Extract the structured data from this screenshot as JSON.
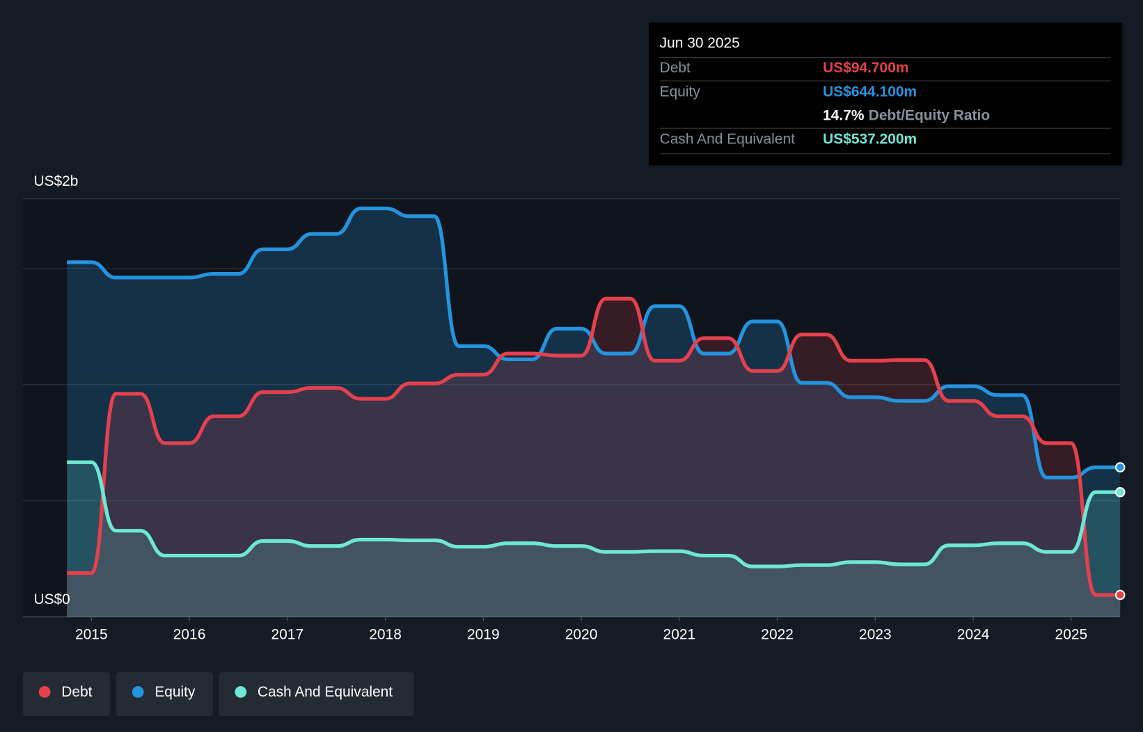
{
  "chart_data": {
    "type": "line",
    "x": [
      2014.75,
      2015.0,
      2015.25,
      2015.5,
      2015.75,
      2016.0,
      2016.25,
      2016.5,
      2016.75,
      2017.0,
      2017.25,
      2017.5,
      2017.75,
      2018.0,
      2018.25,
      2018.5,
      2018.75,
      2019.0,
      2019.25,
      2019.5,
      2019.75,
      2020.0,
      2020.25,
      2020.5,
      2020.75,
      2021.0,
      2021.25,
      2021.5,
      2021.75,
      2022.0,
      2022.25,
      2022.5,
      2022.75,
      2023.0,
      2023.25,
      2023.5,
      2023.75,
      2024.0,
      2024.25,
      2024.5,
      2024.75,
      2025.0,
      2025.25,
      2025.5
    ],
    "series": [
      {
        "name": "Debt",
        "color": "#e5404e",
        "values": [
          189,
          189,
          961,
          961,
          748,
          748,
          864,
          864,
          968,
          968,
          986,
          986,
          939,
          939,
          1005,
          1005,
          1043,
          1043,
          1134,
          1134,
          1125,
          1125,
          1370,
          1370,
          1103,
          1103,
          1200,
          1200,
          1059,
          1059,
          1216,
          1216,
          1103,
          1103,
          1106,
          1106,
          930,
          930,
          864,
          864,
          748,
          748,
          94.7,
          94.7
        ]
      },
      {
        "name": "Equity",
        "color": "#2394df",
        "values": [
          1527,
          1527,
          1461,
          1461,
          1461,
          1461,
          1477,
          1477,
          1583,
          1583,
          1649,
          1649,
          1759,
          1759,
          1725,
          1725,
          1166,
          1166,
          1109,
          1109,
          1241,
          1241,
          1134,
          1134,
          1338,
          1338,
          1134,
          1134,
          1272,
          1272,
          1008,
          1008,
          946,
          946,
          930,
          930,
          993,
          993,
          955,
          955,
          600,
          600,
          644.1,
          644.1
        ]
      },
      {
        "name": "Cash And Equivalent",
        "color": "#6ee7d4",
        "values": [
          666,
          666,
          371,
          371,
          264,
          264,
          264,
          264,
          327,
          327,
          305,
          305,
          333,
          333,
          330,
          330,
          302,
          302,
          317,
          317,
          305,
          305,
          280,
          280,
          283,
          283,
          264,
          264,
          217,
          217,
          223,
          223,
          236,
          236,
          226,
          226,
          308,
          308,
          317,
          317,
          280,
          280,
          537.2,
          537.2
        ]
      }
    ],
    "xlim": [
      2014.3,
      2025.5
    ],
    "xticks": [
      2015,
      2016,
      2017,
      2018,
      2019,
      2020,
      2021,
      2022,
      2023,
      2024,
      2025
    ],
    "ylim": [
      0,
      1800
    ],
    "yticks": [
      {
        "value": 0,
        "label": "US$0"
      },
      {
        "value": 1800,
        "label": "US$2b"
      }
    ],
    "grid_lines": [
      500,
      1000,
      1500
    ],
    "grid": true,
    "legend": "bottom-left",
    "tooltip": {
      "date": "Jun 30 2025",
      "rows": [
        {
          "label": "Debt",
          "value": "US$94.700m"
        },
        {
          "label": "Equity",
          "value": "US$644.100m"
        },
        {
          "label": "Cash And Equivalent",
          "value": "US$537.200m"
        }
      ],
      "ratio": {
        "value": "14.7%",
        "label": "Debt/Equity Ratio"
      }
    }
  }
}
